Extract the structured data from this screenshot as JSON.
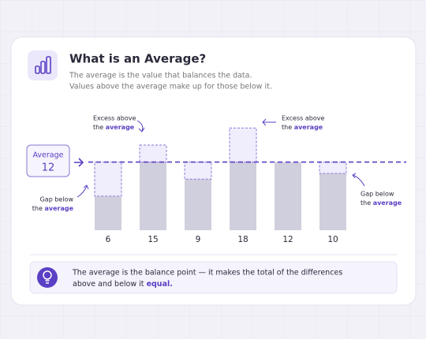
{
  "chart_data": {
    "type": "bar",
    "title": "What is an Average?",
    "subtitle": [
      "The average is the value that balances the data.",
      "Values above the average make up for those below it."
    ],
    "values": [
      6,
      15,
      9,
      18,
      12,
      10
    ],
    "average_label": "Average",
    "average": 12,
    "annotations": [
      {
        "line1": "Excess above",
        "line2": "the",
        "emphasis": "average"
      },
      {
        "line1": "Excess above",
        "line2": "the",
        "emphasis": "average"
      },
      {
        "line1": "Gap below",
        "line2": "the",
        "emphasis": "average"
      },
      {
        "line1": "Gap below",
        "line2": "the",
        "emphasis": "average"
      }
    ],
    "footer": {
      "line1": "The average is the balance point — it makes the total of the differences",
      "line2": "above and below it",
      "emphasis": "equal."
    },
    "bar_color": "#cfcfdd",
    "accent_color": "#5b3fc4",
    "excess_fill": "#ece8fb"
  }
}
